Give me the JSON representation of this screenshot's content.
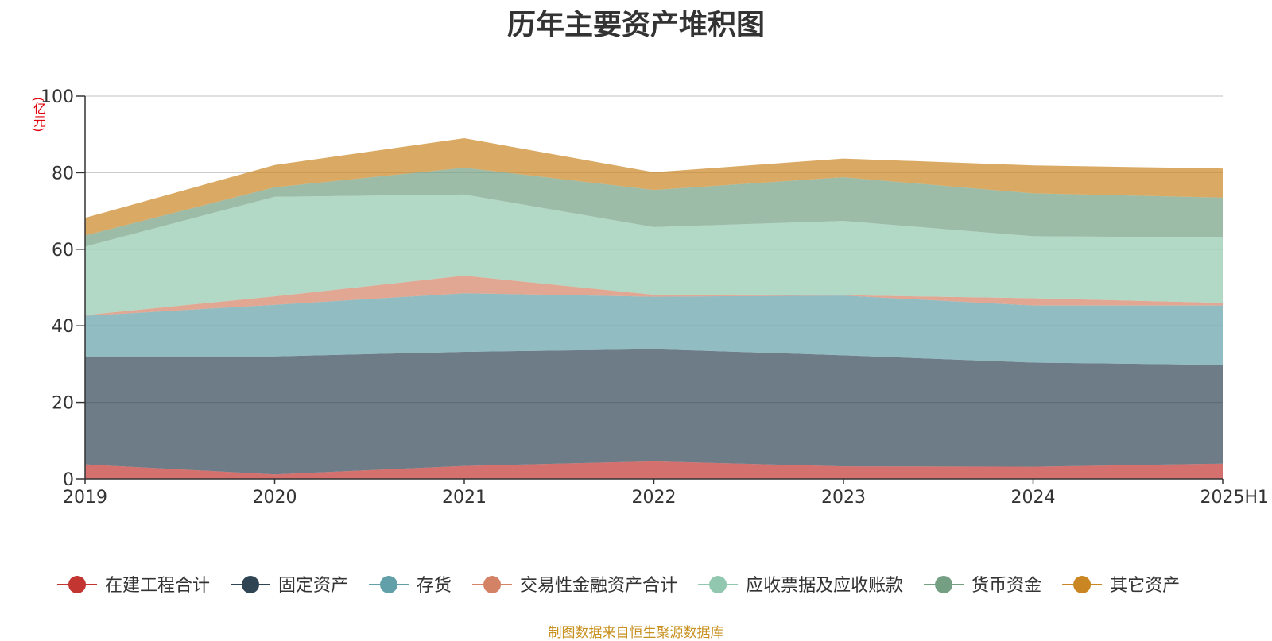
{
  "title": "历年主要资产堆积图",
  "unit_label": "(亿元)",
  "source": "制图数据来自恒生聚源数据库",
  "chart_data": {
    "type": "area",
    "stacked": true,
    "title": "历年主要资产堆积图",
    "ylabel": "(亿元)",
    "xlabel": "",
    "ylim": [
      0,
      100
    ],
    "yticks": [
      0,
      20,
      40,
      60,
      80,
      100
    ],
    "grid": true,
    "legend_position": "bottom",
    "categories": [
      "2019",
      "2020",
      "2021",
      "2022",
      "2023",
      "2024",
      "2025H1"
    ],
    "series": [
      {
        "name": "在建工程合计",
        "color": "#c23531",
        "values": [
          3.8,
          1.2,
          3.4,
          4.6,
          3.3,
          3.2,
          4.0
        ]
      },
      {
        "name": "固定资产",
        "color": "#2f4554",
        "values": [
          28.2,
          30.8,
          29.8,
          29.3,
          29.0,
          27.2,
          25.8
        ]
      },
      {
        "name": "存货",
        "color": "#61a0a8",
        "values": [
          10.6,
          13.5,
          15.3,
          13.7,
          15.6,
          14.9,
          15.5
        ]
      },
      {
        "name": "交易性金融资产合计",
        "color": "#d48265",
        "values": [
          0.2,
          2.2,
          4.6,
          0.5,
          0.1,
          1.9,
          0.7
        ]
      },
      {
        "name": "应收票据及应收账款",
        "color": "#91c7ae",
        "values": [
          17.9,
          26.0,
          21.2,
          17.7,
          19.4,
          16.2,
          17.1
        ]
      },
      {
        "name": "货币资金",
        "color": "#749f83",
        "values": [
          2.9,
          2.5,
          7.0,
          9.7,
          11.4,
          11.2,
          10.4
        ]
      },
      {
        "name": "其它资产",
        "color": "#ca8622",
        "values": [
          4.6,
          5.8,
          7.7,
          4.6,
          4.9,
          7.3,
          7.6
        ]
      }
    ]
  }
}
